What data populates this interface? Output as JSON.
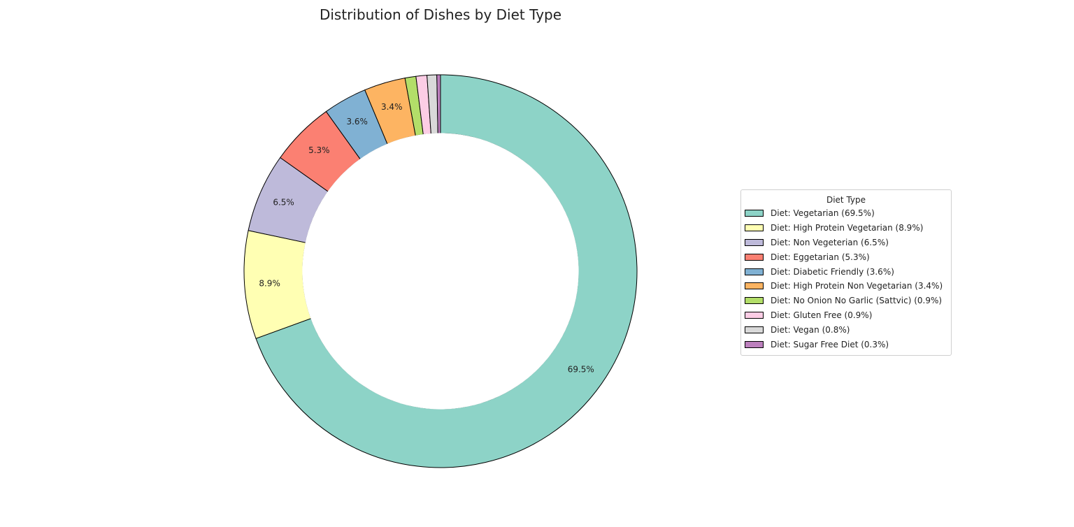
{
  "chart_data": {
    "type": "pie",
    "title": "Distribution of Dishes by Diet Type",
    "donut": true,
    "start_angle_deg": 90,
    "direction": "clockwise",
    "legend": {
      "title": "Diet Type",
      "placement": "right"
    },
    "slices": [
      {
        "label": "Diet: Vegetarian (69.5%)",
        "value": 69.5,
        "pct_label": "69.5%",
        "color": "#8dd3c7"
      },
      {
        "label": "Diet: High Protein Vegetarian (8.9%)",
        "value": 8.9,
        "pct_label": "8.9%",
        "color": "#ffffb3"
      },
      {
        "label": "Diet: Non Vegeterian (6.5%)",
        "value": 6.5,
        "pct_label": "6.5%",
        "color": "#bebada"
      },
      {
        "label": "Diet: Eggetarian (5.3%)",
        "value": 5.3,
        "pct_label": "5.3%",
        "color": "#fb8072"
      },
      {
        "label": "Diet: Diabetic Friendly (3.6%)",
        "value": 3.6,
        "pct_label": "3.6%",
        "color": "#80b1d3"
      },
      {
        "label": "Diet: High Protein Non Vegetarian (3.4%)",
        "value": 3.4,
        "pct_label": "3.4%",
        "color": "#fdb462"
      },
      {
        "label": "Diet: No Onion No Garlic (Sattvic) (0.9%)",
        "value": 0.9,
        "pct_label": "",
        "color": "#b3de69"
      },
      {
        "label": "Diet: Gluten Free (0.9%)",
        "value": 0.9,
        "pct_label": "",
        "color": "#fccde5"
      },
      {
        "label": "Diet: Vegan (0.8%)",
        "value": 0.8,
        "pct_label": "",
        "color": "#d9d9d9"
      },
      {
        "label": "Diet: Sugar Free Diet (0.3%)",
        "value": 0.3,
        "pct_label": "",
        "color": "#bc80bd"
      }
    ]
  }
}
